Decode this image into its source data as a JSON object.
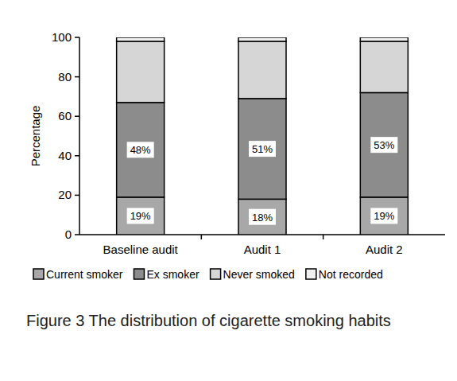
{
  "chart_data": {
    "type": "bar",
    "stacked": true,
    "data_labels": true,
    "title": "Figure 3  The distribution of cigarette smoking habits",
    "ylabel": "Percentage",
    "categories": [
      "Baseline audit",
      "Audit 1",
      "Audit 2"
    ],
    "series": [
      {
        "name": "Current smoker",
        "color": "#a8a8a8",
        "values": [
          19,
          18,
          19
        ],
        "value_labels": [
          "19%",
          "18%",
          "19%"
        ]
      },
      {
        "name": "Ex smoker",
        "color": "#8c8c8c",
        "values": [
          48,
          51,
          53
        ],
        "value_labels": [
          "48%",
          "51%",
          "53%"
        ]
      },
      {
        "name": "Never smoked",
        "color": "#d6d6d6",
        "values": [
          31,
          29,
          26
        ]
      },
      {
        "name": "Not recorded",
        "color": "#f0f0f0",
        "values": [
          2,
          2,
          2
        ]
      }
    ],
    "ylim": [
      0,
      100
    ],
    "yticks": [
      0,
      20,
      40,
      60,
      80,
      100
    ],
    "grid": false,
    "legend": "bottom"
  }
}
